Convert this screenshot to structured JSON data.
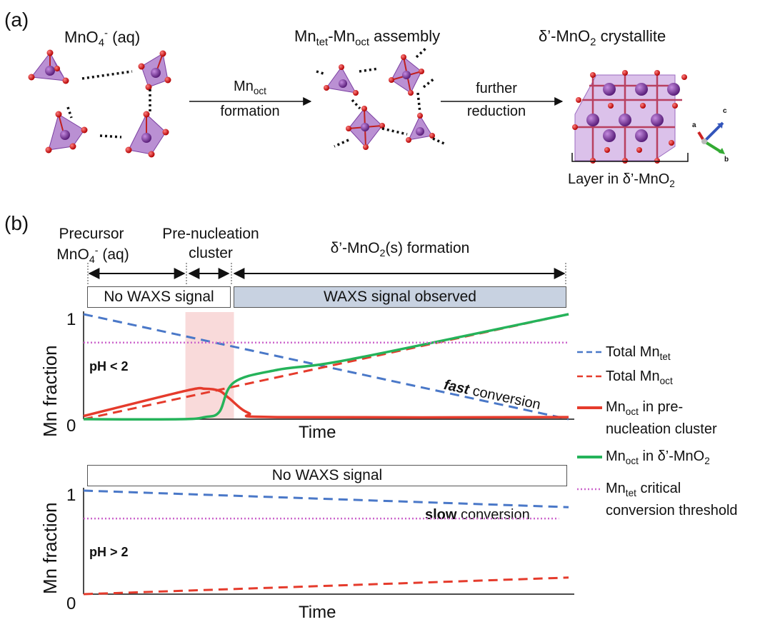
{
  "panel_a": {
    "label": "(a)",
    "stage1_title_base": "MnO",
    "stage1_title_sub": "4",
    "stage1_title_sup": "-",
    "stage1_title_tail": " (aq)",
    "stage2_title_a": "Mn",
    "stage2_title_a_sub": "tet",
    "stage2_title_b": "-Mn",
    "stage2_title_b_sub": "oct",
    "stage2_title_tail": "  assembly",
    "stage3_title_base": "δ’-MnO",
    "stage3_title_sub": "2",
    "stage3_title_tail": " crystallite",
    "arrow1_label_base": "Mn",
    "arrow1_label_sub": "oct",
    "arrow1_label_line2": "formation",
    "arrow2_label_line1": "further",
    "arrow2_label_line2": "reduction",
    "layer_label_base": "Layer in δ’-MnO",
    "layer_label_sub": "2",
    "axis_a": "a",
    "axis_b": "b",
    "axis_c": "c"
  },
  "panel_b": {
    "label": "(b)",
    "stage1_line1": "Precursor",
    "stage1_line2_base": "MnO",
    "stage1_line2_sub": "4",
    "stage1_line2_sup": "-",
    "stage1_line2_tail": " (aq)",
    "stage2_line1": "Pre-nucleation",
    "stage2_line2": "cluster",
    "stage3_base": "δ’-MnO",
    "stage3_sub": "2",
    "stage3_tail": "(s) formation",
    "box_no_waxs": "No WAXS signal",
    "box_waxs_observed": "WAXS signal observed",
    "box_no_waxs_bottom": "No WAXS signal"
  },
  "top_plot": {
    "ylabel": "Mn fraction",
    "xlabel": "Time",
    "y_tick_top": "1",
    "y_tick_bottom": "0",
    "condition": "pH < 2",
    "annotation_bold": "fast",
    "annotation_rest": " conversion"
  },
  "bottom_plot": {
    "ylabel": "Mn fraction",
    "xlabel": "Time",
    "y_tick_top": "1",
    "y_tick_bottom": "0",
    "condition": "pH > 2",
    "annotation_bold": "slow",
    "annotation_rest": " conversion"
  },
  "legend": {
    "l1_base": "Total Mn",
    "l1_sub": "tet",
    "l2_base": "Total Mn",
    "l2_sub": "oct",
    "l3_base": "Mn",
    "l3_sub": "oct",
    "l3_tail": " in pre-",
    "l3_line2": "nucleation cluster",
    "l4_base": "Mn",
    "l4_sub": "oct",
    "l4_tail": " in δ’-MnO",
    "l4_sub2": "2",
    "l5_base": "Mn",
    "l5_sub": "tet",
    "l5_tail": " critical",
    "l5_line2": "conversion threshold"
  },
  "colors": {
    "total_mn_tet": "#4a78c8",
    "total_mn_oct": "#e53b2c",
    "mn_oct_cluster": "#e53b2c",
    "mn_oct_crystal": "#25b35a",
    "threshold": "#cc66cc",
    "cluster_shade": "#f8d3d3",
    "waxs_box": "#c8d2e1"
  },
  "chart_data": [
    {
      "type": "line",
      "title": "",
      "xlabel": "Time",
      "ylabel": "Mn fraction",
      "ylim": [
        0,
        1
      ],
      "condition": "pH < 2",
      "series": [
        {
          "name": "Total Mn_tet",
          "style": "dashed",
          "x": [
            0,
            1
          ],
          "y": [
            1.0,
            0.0
          ]
        },
        {
          "name": "Total Mn_oct",
          "style": "dashed",
          "x": [
            0,
            1
          ],
          "y": [
            0.0,
            1.0
          ]
        },
        {
          "name": "Mn_oct in pre-nucleation cluster",
          "style": "solid",
          "x": [
            0,
            0.21,
            0.25,
            0.28,
            0.3,
            0.34,
            0.4,
            1.0
          ],
          "y": [
            0.03,
            0.27,
            0.29,
            0.27,
            0.2,
            0.06,
            0.02,
            0.02
          ]
        },
        {
          "name": "Mn_oct in δ’-MnO2",
          "style": "solid",
          "x": [
            0,
            0.2,
            0.25,
            0.28,
            0.31,
            0.4,
            0.55,
            1.0
          ],
          "y": [
            0.0,
            0.0,
            0.02,
            0.07,
            0.35,
            0.47,
            0.57,
            1.0
          ]
        },
        {
          "name": "Mn_tet critical conversion threshold",
          "style": "dotted",
          "x": [
            0,
            1
          ],
          "y": [
            0.73,
            0.73
          ]
        }
      ],
      "shaded_region_x": [
        0.21,
        0.31
      ]
    },
    {
      "type": "line",
      "title": "",
      "xlabel": "Time",
      "ylabel": "Mn fraction",
      "ylim": [
        0,
        1
      ],
      "condition": "pH > 2",
      "series": [
        {
          "name": "Total Mn_tet",
          "style": "dashed",
          "x": [
            0,
            1
          ],
          "y": [
            1.0,
            0.84
          ]
        },
        {
          "name": "Total Mn_oct",
          "style": "dashed",
          "x": [
            0,
            1
          ],
          "y": [
            0.0,
            0.16
          ]
        },
        {
          "name": "Mn_tet critical conversion threshold",
          "style": "dotted",
          "x": [
            0,
            0.98
          ],
          "y": [
            0.73,
            0.73
          ]
        }
      ]
    }
  ]
}
